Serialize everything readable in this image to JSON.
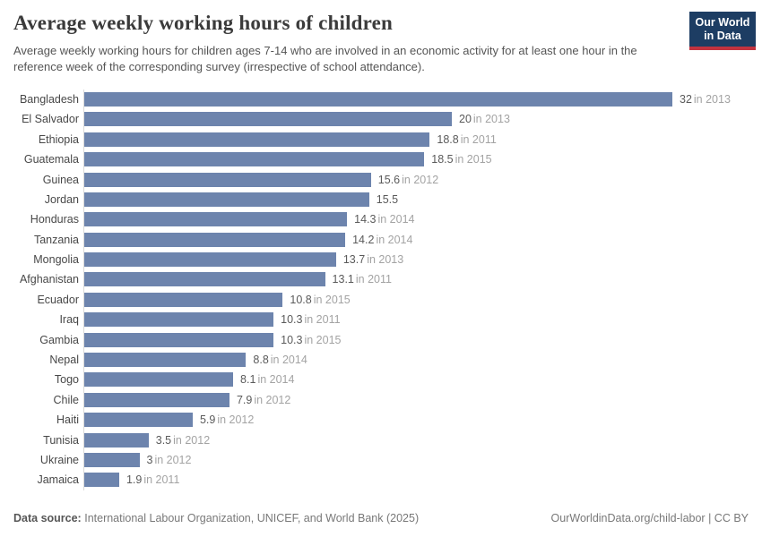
{
  "header": {
    "title": "Average weekly working hours of children",
    "subtitle": "Average weekly working hours for children ages 7-14 who are involved in an economic activity for at least one hour in the reference week of the corresponding survey (irrespective of school attendance).",
    "logo": {
      "line1": "Our World",
      "line2": "in Data",
      "bg_color": "#1d3d63",
      "accent_color": "#c2333f"
    }
  },
  "chart_data": {
    "type": "bar",
    "orientation": "horizontal",
    "title": "Average weekly working hours of children",
    "xlim": [
      0,
      32
    ],
    "grid": false,
    "legend": false,
    "bar_color": "#6d84ad",
    "categories": [
      "Bangladesh",
      "El Salvador",
      "Ethiopia",
      "Guatemala",
      "Guinea",
      "Jordan",
      "Honduras",
      "Tanzania",
      "Mongolia",
      "Afghanistan",
      "Ecuador",
      "Iraq",
      "Gambia",
      "Nepal",
      "Togo",
      "Chile",
      "Haiti",
      "Tunisia",
      "Ukraine",
      "Jamaica"
    ],
    "values": [
      32,
      20,
      18.8,
      18.5,
      15.6,
      15.5,
      14.3,
      14.2,
      13.7,
      13.1,
      10.8,
      10.3,
      10.3,
      8.8,
      8.1,
      7.9,
      5.9,
      3.5,
      3,
      1.9
    ],
    "years": [
      2013,
      2013,
      2011,
      2015,
      2012,
      null,
      2014,
      2014,
      2013,
      2011,
      2015,
      2011,
      2015,
      2014,
      2014,
      2012,
      2012,
      2012,
      2012,
      2011
    ],
    "year_prefix": "in"
  },
  "footer": {
    "source_label": "Data source:",
    "source_text": "International Labour Organization, UNICEF, and World Bank (2025)",
    "credit": "OurWorldinData.org/child-labor | CC BY"
  }
}
